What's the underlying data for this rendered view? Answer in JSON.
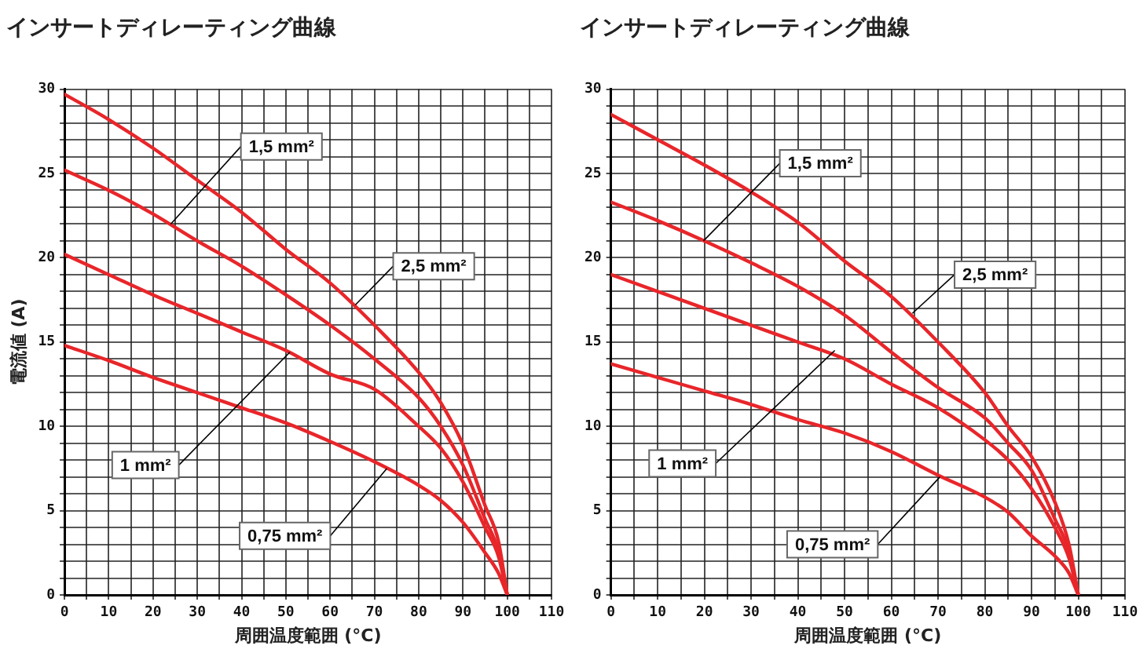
{
  "chart_data": [
    {
      "type": "line",
      "title": "インサートディレーティング曲線",
      "xlabel": "周囲温度範囲 (°C)",
      "ylabel": "電流値 (A)",
      "xlim": [
        0,
        110
      ],
      "ylim": [
        0,
        30
      ],
      "xticks": [
        0,
        {
          "value": 5,
          "label": null
        },
        10,
        {
          "value": 15,
          "label": null
        },
        20,
        {
          "value": 25,
          "label": null
        },
        30,
        {
          "value": 35,
          "label": null
        },
        40,
        {
          "value": 45,
          "label": null
        },
        50,
        {
          "value": 55,
          "label": null
        },
        60,
        {
          "value": 65,
          "label": null
        },
        70,
        {
          "value": 75,
          "label": null
        },
        80,
        {
          "value": 85,
          "label": null
        },
        90,
        {
          "value": 95,
          "label": null
        },
        100,
        {
          "value": 105,
          "label": null
        },
        110
      ],
      "yticks": [
        0,
        {
          "value": 1,
          "label": null
        },
        {
          "value": 2,
          "label": null
        },
        {
          "value": 3,
          "label": null
        },
        {
          "value": 4,
          "label": null
        },
        5,
        {
          "value": 6,
          "label": null
        },
        {
          "value": 7,
          "label": null
        },
        {
          "value": 8,
          "label": null
        },
        {
          "value": 9,
          "label": null
        },
        10,
        {
          "value": 11,
          "label": null
        },
        {
          "value": 12,
          "label": null
        },
        {
          "value": 13,
          "label": null
        },
        {
          "value": 14,
          "label": null
        },
        15,
        {
          "value": 16,
          "label": null
        },
        {
          "value": 17,
          "label": null
        },
        {
          "value": 18,
          "label": null
        },
        {
          "value": 19,
          "label": null
        },
        20,
        {
          "value": 21,
          "label": null
        },
        {
          "value": 22,
          "label": null
        },
        {
          "value": 23,
          "label": null
        },
        {
          "value": 24,
          "label": null
        },
        25,
        {
          "value": 26,
          "label": null
        },
        {
          "value": 27,
          "label": null
        },
        {
          "value": 28,
          "label": null
        },
        {
          "value": 29,
          "label": null
        },
        30
      ],
      "grid": true,
      "legend": false,
      "marker": "none",
      "line_style": "solid",
      "x": [
        0,
        10,
        20,
        30,
        40,
        50,
        60,
        70,
        80,
        85,
        90,
        95,
        98,
        100
      ],
      "series": [
        {
          "color": "#e8262a",
          "values": [
            29.7,
            28.2,
            26.5,
            24.6,
            22.7,
            20.5,
            18.5,
            16.0,
            13.2,
            11.4,
            8.9,
            5.3,
            3.2,
            0
          ]
        },
        {
          "color": "#e8262a",
          "values": [
            25.2,
            24.0,
            22.6,
            21.0,
            19.5,
            17.8,
            16.0,
            14.0,
            11.7,
            10.0,
            7.7,
            4.5,
            2.6,
            0
          ]
        },
        {
          "color": "#e8262a",
          "values": [
            20.2,
            19.0,
            17.8,
            16.7,
            15.6,
            14.5,
            13.1,
            12.2,
            10.0,
            8.7,
            6.7,
            4.0,
            2.3,
            0
          ]
        },
        {
          "color": "#e8262a",
          "values": [
            14.8,
            13.9,
            12.9,
            12.0,
            11.1,
            10.2,
            9.1,
            7.9,
            6.5,
            5.6,
            4.3,
            2.5,
            1.3,
            0
          ]
        }
      ],
      "annotations": [
        {
          "text": "1,5 mm²",
          "x": 24,
          "y": 22
        },
        {
          "text": "2,5 mm²",
          "x": 65.7,
          "y": 17.2
        },
        {
          "text": "1 mm²",
          "x": 50.9,
          "y": 14.4
        },
        {
          "text": "0,75 mm²",
          "x": 72.8,
          "y": 7.5
        }
      ]
    },
    {
      "type": "line",
      "title": "インサートディレーティング曲線",
      "xlabel": "周囲温度範囲 (°C)",
      "xlim": [
        0,
        110
      ],
      "ylim": [
        0,
        30
      ],
      "xticks": [
        0,
        {
          "value": 5,
          "label": null
        },
        10,
        {
          "value": 15,
          "label": null
        },
        20,
        {
          "value": 25,
          "label": null
        },
        30,
        {
          "value": 35,
          "label": null
        },
        40,
        {
          "value": 45,
          "label": null
        },
        50,
        {
          "value": 55,
          "label": null
        },
        60,
        {
          "value": 65,
          "label": null
        },
        70,
        {
          "value": 75,
          "label": null
        },
        80,
        {
          "value": 85,
          "label": null
        },
        90,
        {
          "value": 95,
          "label": null
        },
        100,
        {
          "value": 105,
          "label": null
        },
        110
      ],
      "yticks": [
        0,
        {
          "value": 1,
          "label": null
        },
        {
          "value": 2,
          "label": null
        },
        {
          "value": 3,
          "label": null
        },
        {
          "value": 4,
          "label": null
        },
        5,
        {
          "value": 6,
          "label": null
        },
        {
          "value": 7,
          "label": null
        },
        {
          "value": 8,
          "label": null
        },
        {
          "value": 9,
          "label": null
        },
        10,
        {
          "value": 11,
          "label": null
        },
        {
          "value": 12,
          "label": null
        },
        {
          "value": 13,
          "label": null
        },
        {
          "value": 14,
          "label": null
        },
        15,
        {
          "value": 16,
          "label": null
        },
        {
          "value": 17,
          "label": null
        },
        {
          "value": 18,
          "label": null
        },
        {
          "value": 19,
          "label": null
        },
        20,
        {
          "value": 21,
          "label": null
        },
        {
          "value": 22,
          "label": null
        },
        {
          "value": 23,
          "label": null
        },
        {
          "value": 24,
          "label": null
        },
        25,
        {
          "value": 26,
          "label": null
        },
        {
          "value": 27,
          "label": null
        },
        {
          "value": 28,
          "label": null
        },
        {
          "value": 29,
          "label": null
        },
        30
      ],
      "grid": true,
      "legend": false,
      "marker": "none",
      "line_style": "solid",
      "x": [
        0,
        10,
        20,
        30,
        40,
        50,
        60,
        70,
        80,
        85,
        90,
        95,
        98,
        100
      ],
      "series": [
        {
          "color": "#e8262a",
          "values": [
            28.5,
            27.0,
            25.5,
            23.9,
            22.1,
            19.8,
            17.7,
            15.0,
            12.0,
            10.0,
            8.2,
            5.5,
            3.0,
            0
          ]
        },
        {
          "color": "#e8262a",
          "values": [
            23.3,
            22.2,
            21.0,
            19.7,
            18.3,
            16.6,
            14.4,
            12.3,
            10.5,
            9.0,
            7.4,
            4.5,
            2.6,
            0
          ]
        },
        {
          "color": "#e8262a",
          "values": [
            19.0,
            18.0,
            17.0,
            16.0,
            15.0,
            14.0,
            12.5,
            11.1,
            9.2,
            8.0,
            6.3,
            4.0,
            2.2,
            0
          ]
        },
        {
          "color": "#e8262a",
          "values": [
            13.7,
            12.9,
            12.1,
            11.3,
            10.4,
            9.6,
            8.5,
            7.1,
            5.8,
            4.9,
            3.5,
            2.3,
            1.3,
            0
          ]
        }
      ],
      "annotations": [
        {
          "text": "1,5 mm²",
          "x": 19.8,
          "y": 21.0
        },
        {
          "text": "2,5 mm²",
          "x": 64.5,
          "y": 16.7
        },
        {
          "text": "1 mm²",
          "x": 47.9,
          "y": 14.5
        },
        {
          "text": "0,75 mm²",
          "x": 70.4,
          "y": 7.0
        }
      ]
    }
  ]
}
